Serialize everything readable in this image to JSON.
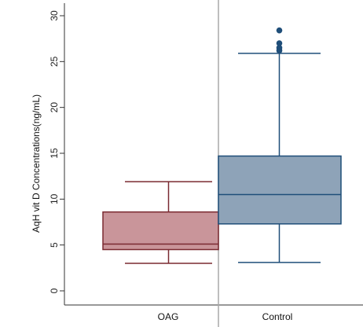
{
  "chart_data": {
    "type": "box",
    "ylabel": "AqH vit D Concentrations(ng/mL)",
    "xlabel": "",
    "ylim": [
      0,
      30
    ],
    "yticks": [
      0,
      5,
      10,
      15,
      20,
      25,
      30
    ],
    "grid": false,
    "legend": "none",
    "categories": [
      "OAG",
      "Control"
    ],
    "series": [
      {
        "category": "OAG",
        "whisker_low": 3.0,
        "q1": 4.5,
        "median": 5.1,
        "q3": 8.6,
        "whisker_high": 11.9,
        "outliers": [],
        "fill_color": "#c9959a",
        "line_color": "#7a2a31"
      },
      {
        "category": "Control",
        "whisker_low": 3.1,
        "q1": 7.3,
        "median": 10.5,
        "q3": 14.7,
        "whisker_high": 25.9,
        "outliers": [
          26.2,
          26.5,
          27.0,
          28.4
        ],
        "fill_color": "#8ea3b8",
        "line_color": "#1f4e79"
      }
    ]
  }
}
